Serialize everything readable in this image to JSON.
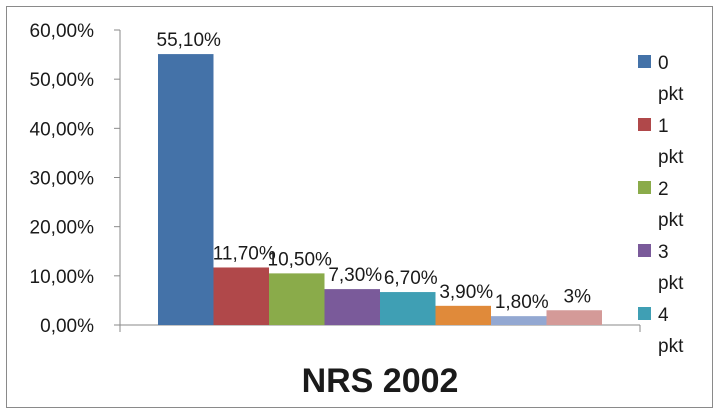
{
  "chart_data": {
    "type": "bar",
    "title": "NRS 2002",
    "xlabel": "",
    "ylabel": "",
    "ylim": [
      0,
      60
    ],
    "y_tick_values": [
      0,
      10,
      20,
      30,
      40,
      50,
      60
    ],
    "y_tick_labels": [
      "0,00%",
      "10,00%",
      "20,00%",
      "30,00%",
      "40,00%",
      "50,00%",
      "60,00%"
    ],
    "categories": [
      "0 pkt",
      "1 pkt",
      "2 pkt",
      "3 pkt",
      "4 pkt",
      "",
      "",
      ""
    ],
    "values": [
      55.1,
      11.7,
      10.5,
      7.3,
      6.7,
      3.9,
      1.8,
      3.0
    ],
    "data_labels": [
      "55,10%",
      "11,70%",
      "10,50%",
      "7,30%",
      "6,70%",
      "3,90%",
      "1,80%",
      "3%"
    ],
    "colors": [
      "#4472a8",
      "#b0484a",
      "#8aab4a",
      "#7a5a9a",
      "#3f9fb4",
      "#e08a3a",
      "#93a8d2",
      "#d49a98"
    ],
    "legend": [
      {
        "num": "0",
        "unit": "pkt",
        "color": "#4472a8"
      },
      {
        "num": "1",
        "unit": "pkt",
        "color": "#b0484a"
      },
      {
        "num": "2",
        "unit": "pkt",
        "color": "#8aab4a"
      },
      {
        "num": "3",
        "unit": "pkt",
        "color": "#7a5a9a"
      },
      {
        "num": "4",
        "unit": "pkt",
        "color": "#3f9fb4"
      }
    ],
    "legend_position": "right",
    "grid": false
  }
}
